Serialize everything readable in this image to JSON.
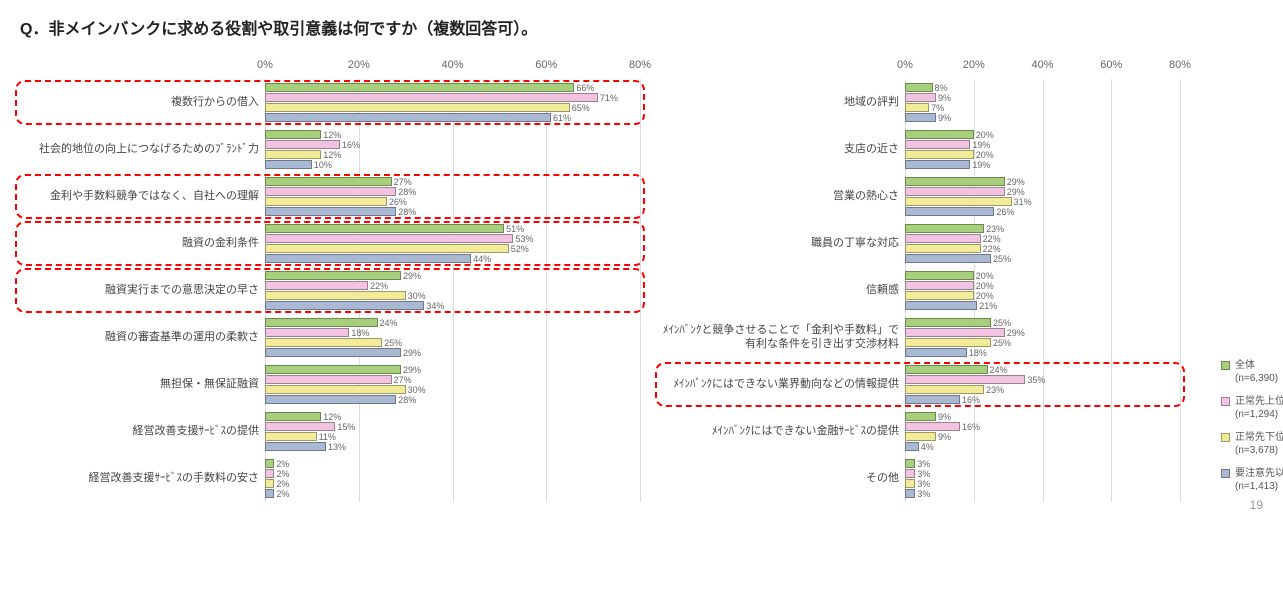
{
  "title": "Q．非メインバンクに求める役割や取引意義は何ですか（複数回答可）。",
  "page_number": "19",
  "axis": {
    "ticks": [
      0,
      20,
      40,
      60,
      80
    ],
    "max": 80,
    "label_suffix": "%",
    "grid_color": "#dddddd"
  },
  "series": [
    {
      "name": "全体",
      "sub": "(n=6,390)",
      "color": "#a8cf7b"
    },
    {
      "name": "正常先上位",
      "sub": "(n=1,294)",
      "color": "#f2c3e1"
    },
    {
      "name": "正常先下位",
      "sub": "(n=3,678)",
      "color": "#f2eb9a"
    },
    {
      "name": "要注意先以下",
      "sub": "(n=1,413)",
      "color": "#a9b9d4"
    }
  ],
  "typography": {
    "title_fontsize": 16,
    "axis_fontsize": 11,
    "label_fontsize": 11,
    "value_fontsize": 9,
    "legend_fontsize": 10
  },
  "left_chart": [
    {
      "label": "複数行からの借入",
      "values": [
        66,
        71,
        65,
        61
      ],
      "highlight": true
    },
    {
      "label": "社会的地位の向上につなげるためのﾌﾞﾗﾝﾄﾞ力",
      "values": [
        12,
        16,
        12,
        10
      ],
      "highlight": false
    },
    {
      "label": "金利や手数料競争ではなく、自社への理解",
      "values": [
        27,
        28,
        26,
        28
      ],
      "highlight": true
    },
    {
      "label": "融資の金利条件",
      "values": [
        51,
        53,
        52,
        44
      ],
      "highlight": true
    },
    {
      "label": "融資実行までの意思決定の早さ",
      "values": [
        29,
        22,
        30,
        34
      ],
      "highlight": true
    },
    {
      "label": "融資の審査基準の運用の柔軟さ",
      "values": [
        24,
        18,
        25,
        29
      ],
      "highlight": false
    },
    {
      "label": "無担保・無保証融資",
      "values": [
        29,
        27,
        30,
        28
      ],
      "highlight": false
    },
    {
      "label": "経営改善支援ｻｰﾋﾞｽの提供",
      "values": [
        12,
        15,
        11,
        13
      ],
      "highlight": false
    },
    {
      "label": "経営改善支援ｻｰﾋﾞｽの手数料の安さ",
      "values": [
        2,
        2,
        2,
        2
      ],
      "highlight": false
    }
  ],
  "right_chart": [
    {
      "label": "地域の評判",
      "values": [
        8,
        9,
        7,
        9
      ],
      "highlight": false
    },
    {
      "label": "支店の近さ",
      "values": [
        20,
        19,
        20,
        19
      ],
      "highlight": false
    },
    {
      "label": "営業の熱心さ",
      "values": [
        29,
        29,
        31,
        26
      ],
      "highlight": false
    },
    {
      "label": "職員の丁寧な対応",
      "values": [
        23,
        22,
        22,
        25
      ],
      "highlight": false
    },
    {
      "label": "信頼感",
      "values": [
        20,
        20,
        20,
        21
      ],
      "highlight": false
    },
    {
      "label": "ﾒｲﾝﾊﾞﾝｸと競争させることで「金利や手数料」で\n有利な条件を引き出す交渉材料",
      "values": [
        25,
        29,
        25,
        18
      ],
      "highlight": false
    },
    {
      "label": "ﾒｲﾝﾊﾞﾝｸにはできない業界動向などの情報提供",
      "values": [
        24,
        35,
        23,
        16
      ],
      "highlight": true
    },
    {
      "label": "ﾒｲﾝﾊﾞﾝｸにはできない金融ｻｰﾋﾞｽの提供",
      "values": [
        9,
        16,
        9,
        4
      ],
      "highlight": false
    },
    {
      "label": "その他",
      "values": [
        3,
        3,
        3,
        3
      ],
      "highlight": false
    }
  ]
}
